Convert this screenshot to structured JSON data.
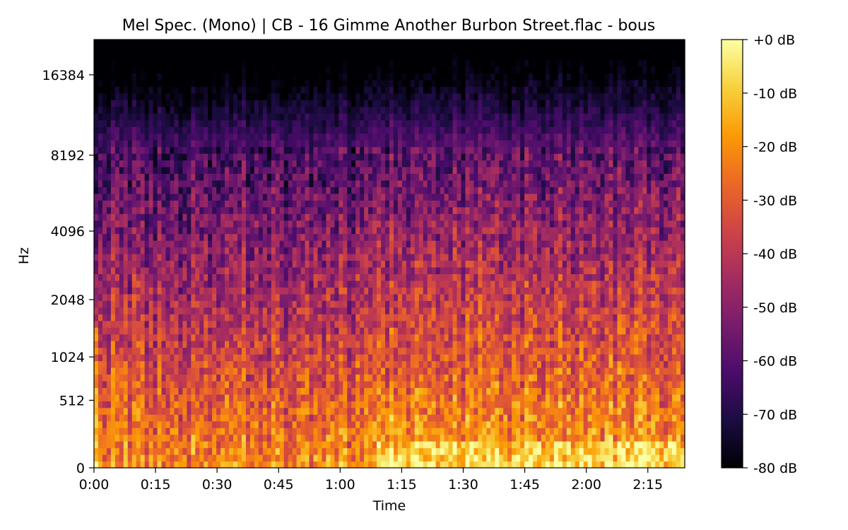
{
  "chart_data": {
    "type": "heatmap",
    "title": "Mel Spec. (Mono) | CB - 16 Gimme Another Burbon Street.flac - bous",
    "xlabel": "Time",
    "ylabel": "Hz",
    "x_tick_labels": [
      "0:00",
      "0:15",
      "0:30",
      "0:45",
      "1:00",
      "1:15",
      "1:30",
      "1:45",
      "2:00",
      "2:15"
    ],
    "x_tick_values_seconds": [
      0,
      15,
      30,
      45,
      60,
      75,
      90,
      105,
      120,
      135
    ],
    "xlim_seconds": [
      0,
      144
    ],
    "y_scale": "mel",
    "y_tick_labels": [
      "0",
      "512",
      "1024",
      "2048",
      "4096",
      "8192",
      "16384"
    ],
    "y_tick_values_hz": [
      0,
      512,
      1024,
      2048,
      4096,
      8192,
      16384
    ],
    "ylim_hz": [
      0,
      22050
    ],
    "colormap": "inferno",
    "colorbar": {
      "tick_labels": [
        "+0 dB",
        "-10 dB",
        "-20 dB",
        "-30 dB",
        "-40 dB",
        "-50 dB",
        "-60 dB",
        "-70 dB",
        "-80 dB"
      ],
      "tick_values_db": [
        0,
        -10,
        -20,
        -30,
        -40,
        -50,
        -60,
        -70,
        -80
      ],
      "range_db": [
        -80,
        0
      ],
      "colors": [
        "#000004",
        "#1b0c41",
        "#4a0c6b",
        "#781c6d",
        "#a52c60",
        "#cf4446",
        "#ed6925",
        "#fb9b06",
        "#f7d13d",
        "#fcffa4"
      ]
    },
    "energy_profile": {
      "description_free": true,
      "loud_onset_seconds": 69,
      "high_freq_cutoff_hz": 9000
    }
  }
}
